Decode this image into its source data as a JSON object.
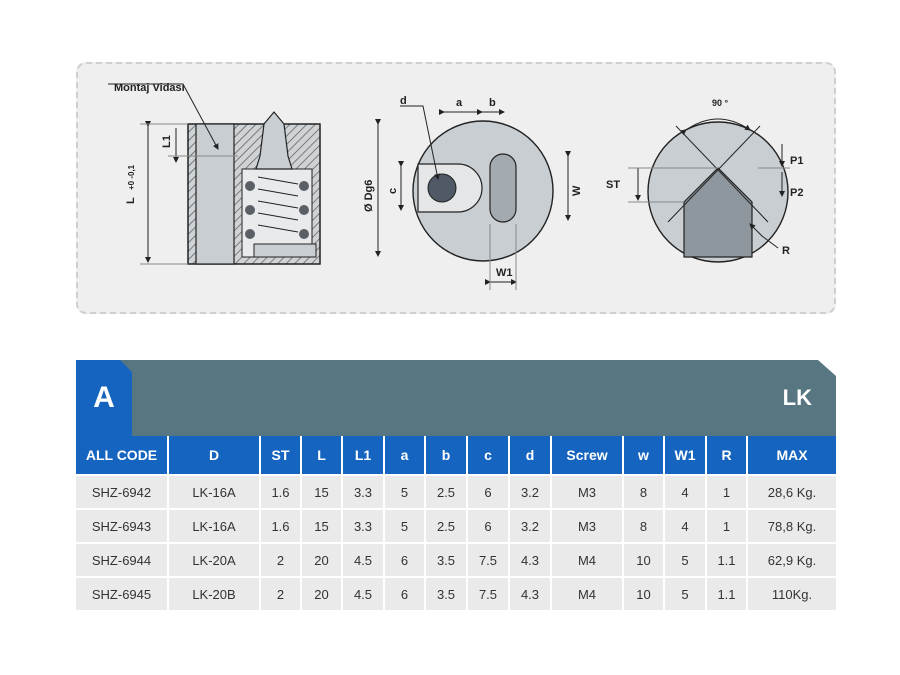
{
  "drawing": {
    "left_label": "Montaj Vidası",
    "dim_L": "L",
    "dim_L_tol": "+0 -0,1",
    "dim_L1": "L1",
    "dim_d": "d",
    "dim_a": "a",
    "dim_b": "b",
    "dim_Dg6": "Ø Dg6",
    "dim_c": "c",
    "dim_W": "W",
    "dim_W1": "W1",
    "angle": "90 °",
    "dim_ST": "ST",
    "dim_P1": "P1",
    "dim_P2": "P2",
    "dim_R": "R"
  },
  "header": {
    "letter": "A",
    "series": "LK",
    "accent_color": "#1565c0",
    "band_color": "#587582"
  },
  "table": {
    "columns": [
      "ALL CODE",
      "D",
      "ST",
      "L",
      "L1",
      "a",
      "b",
      "c",
      "d",
      "Screw",
      "w",
      "W1",
      "R",
      "MAX"
    ],
    "rows": [
      [
        "SHZ-6942",
        "LK-16A",
        "1.6",
        "15",
        "3.3",
        "5",
        "2.5",
        "6",
        "3.2",
        "M3",
        "8",
        "4",
        "1",
        "28,6 Kg."
      ],
      [
        "SHZ-6943",
        "LK-16A",
        "1.6",
        "15",
        "3.3",
        "5",
        "2.5",
        "6",
        "3.2",
        "M3",
        "8",
        "4",
        "1",
        "78,8 Kg."
      ],
      [
        "SHZ-6944",
        "LK-20A",
        "2",
        "20",
        "4.5",
        "6",
        "3.5",
        "7.5",
        "4.3",
        "M4",
        "10",
        "5",
        "1.1",
        "62,9 Kg."
      ],
      [
        "SHZ-6945",
        "LK-20B",
        "2",
        "20",
        "4.5",
        "6",
        "3.5",
        "7.5",
        "4.3",
        "M4",
        "10",
        "5",
        "1.1",
        "110Kg."
      ]
    ]
  }
}
